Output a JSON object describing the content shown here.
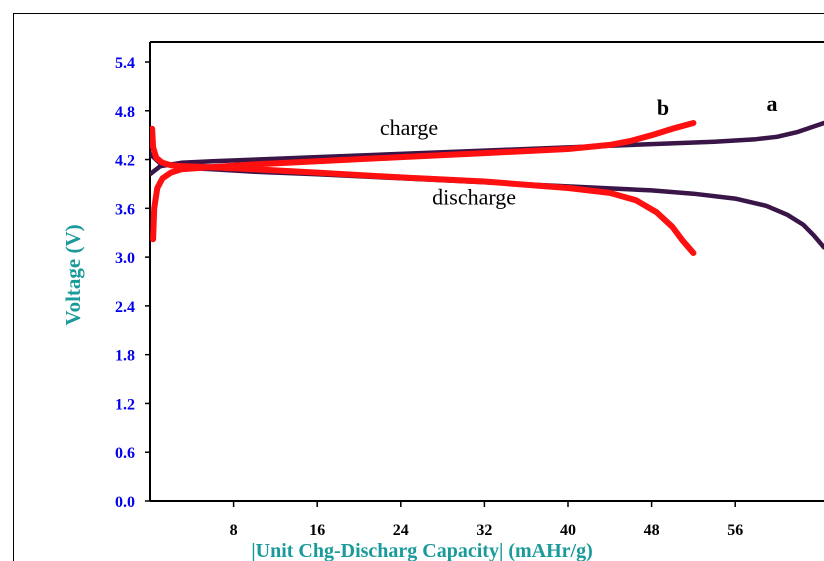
{
  "chart_data": {
    "type": "line",
    "xlabel": "|Unit Chg-Discharg Capacity| (mAHr/g)",
    "ylabel": "Voltage (V)",
    "xlim": [
      0,
      64
    ],
    "ylim": [
      0,
      5.4
    ],
    "xticks": [
      "8",
      "16",
      "24",
      "32",
      "40",
      "48",
      "56"
    ],
    "yticks": [
      "0.0",
      "0.6",
      "1.2",
      "1.8",
      "2.4",
      "3.0",
      "3.6",
      "4.2",
      "4.8",
      "5.4"
    ],
    "grid": false,
    "tick_color": "#0000ee",
    "annotations": [
      {
        "text": "charge",
        "x": 22,
        "y": 4.5
      },
      {
        "text": "discharge",
        "x": 27,
        "y": 3.65
      },
      {
        "text": "b",
        "x": 48.5,
        "y": 4.75
      },
      {
        "text": "a",
        "x": 59,
        "y": 4.8
      }
    ],
    "series": [
      {
        "name": "a",
        "color": "#3a1548",
        "curves": [
          {
            "x": [
              0,
              1,
              3,
              6,
              10,
              16,
              24,
              32,
              40,
              48,
              54,
              58,
              60,
              62,
              64.5
            ],
            "y": [
              4.02,
              4.12,
              4.16,
              4.18,
              4.2,
              4.23,
              4.27,
              4.31,
              4.35,
              4.39,
              4.42,
              4.45,
              4.48,
              4.54,
              4.65
            ]
          },
          {
            "x": [
              0,
              1,
              3,
              6,
              10,
              16,
              24,
              32,
              40,
              48,
              52,
              56,
              59,
              61,
              62.5,
              63.5,
              64.5
            ],
            "y": [
              4.27,
              4.15,
              4.1,
              4.08,
              4.05,
              4.02,
              3.97,
              3.92,
              3.87,
              3.82,
              3.78,
              3.72,
              3.63,
              3.52,
              3.4,
              3.27,
              3.12
            ]
          }
        ]
      },
      {
        "name": "b",
        "color": "#ff1010",
        "curves": [
          {
            "x": [
              0.3,
              0.4,
              0.7,
              1.2,
              2,
              3,
              5,
              10,
              16,
              24,
              32,
              40,
              44,
              46,
              48,
              50,
              52
            ],
            "y": [
              3.22,
              3.6,
              3.85,
              3.97,
              4.04,
              4.08,
              4.1,
              4.14,
              4.18,
              4.23,
              4.28,
              4.33,
              4.38,
              4.43,
              4.5,
              4.58,
              4.65
            ]
          },
          {
            "x": [
              0.2,
              0.3,
              0.6,
              1.2,
              2,
              3,
              5,
              10,
              16,
              24,
              32,
              40,
              44,
              46.5,
              48.5,
              50,
              51,
              52
            ],
            "y": [
              4.58,
              4.35,
              4.22,
              4.16,
              4.13,
              4.12,
              4.11,
              4.08,
              4.04,
              3.98,
              3.93,
              3.85,
              3.79,
              3.7,
              3.55,
              3.37,
              3.2,
              3.05
            ]
          }
        ]
      }
    ]
  }
}
